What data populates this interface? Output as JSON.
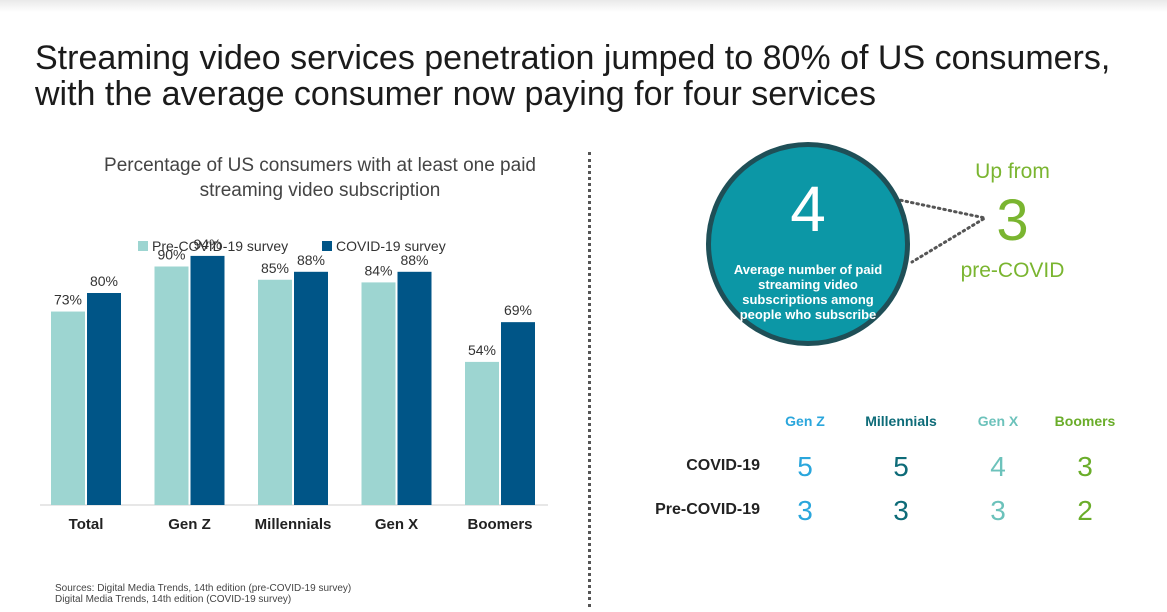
{
  "title": "Streaming video services penetration jumped to 80% of US consumers, with the average consumer now paying for four services",
  "chart_data": {
    "type": "bar",
    "title": "Percentage of US consumers with at least one paid streaming video subscription",
    "categories": [
      "Total",
      "Gen Z",
      "Millennials",
      "Gen X",
      "Boomers"
    ],
    "series": [
      {
        "name": "Pre-COVID-19 survey",
        "values": [
          73,
          90,
          85,
          84,
          54
        ],
        "labels": [
          "73%",
          "90%",
          "85%",
          "84%",
          "54%"
        ],
        "color": "#9dd5d1"
      },
      {
        "name": "COVID-19 survey",
        "values": [
          80,
          94,
          88,
          88,
          69
        ],
        "labels": [
          "80%",
          "94%",
          "88%",
          "88%",
          "69%"
        ],
        "color": "#005587"
      }
    ],
    "ylim": [
      0,
      100
    ],
    "grid": false,
    "legend": "top"
  },
  "bubble": {
    "value": "4",
    "caption": "Average number of paid streaming video subscriptions among people who subscribe",
    "color": "#0c97a6"
  },
  "up_from": {
    "top": "Up from",
    "value": "3",
    "bottom": "pre-COVID",
    "color": "#7ab530"
  },
  "generations_table": {
    "columns": [
      {
        "label": "Gen Z",
        "color": "#2aa6dc"
      },
      {
        "label": "Millennials",
        "color": "#0d6b78"
      },
      {
        "label": "Gen X",
        "color": "#6cc2bb"
      },
      {
        "label": "Boomers",
        "color": "#6aad2a"
      }
    ],
    "rows": [
      {
        "label": "COVID-19",
        "values": [
          "5",
          "5",
          "4",
          "3"
        ]
      },
      {
        "label": "Pre-COVID-19",
        "values": [
          "3",
          "3",
          "3",
          "2"
        ]
      }
    ]
  },
  "sources": [
    "Sources: Digital Media Trends, 14th edition (pre-COVID-19 survey)",
    "Digital Media Trends, 14th edition (COVID-19 survey)"
  ]
}
